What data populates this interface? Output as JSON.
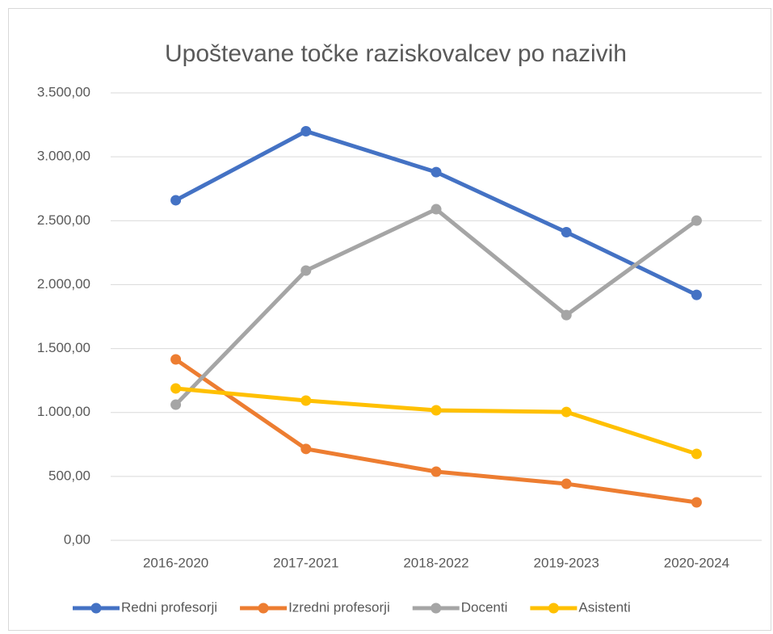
{
  "chart_data": {
    "type": "line",
    "title": "Upoštevane točke raziskovalcev po nazivih",
    "categories": [
      "2016-2020",
      "2017-2021",
      "2018-2022",
      "2019-2023",
      "2020-2024"
    ],
    "series": [
      {
        "name": "Redni profesorji",
        "color": "#4472c4",
        "values": [
          2660,
          3200,
          2880,
          2410,
          1920
        ]
      },
      {
        "name": "Izredni profesorji",
        "color": "#ed7d31",
        "values": [
          1415,
          715,
          537,
          442,
          297
        ]
      },
      {
        "name": "Docenti",
        "color": "#a5a5a5",
        "values": [
          1061,
          2110,
          2590,
          1762,
          2501
        ]
      },
      {
        "name": "Asistenti",
        "color": "#ffc000",
        "values": [
          1188,
          1093,
          1017,
          1004,
          676
        ]
      }
    ],
    "ylim": [
      0,
      3500
    ],
    "yticks": [
      {
        "value": 0,
        "label": "0,00"
      },
      {
        "value": 500,
        "label": "500,00"
      },
      {
        "value": 1000,
        "label": "1.000,00"
      },
      {
        "value": 1500,
        "label": "1.500,00"
      },
      {
        "value": 2000,
        "label": "2.000,00"
      },
      {
        "value": 2500,
        "label": "2.500,00"
      },
      {
        "value": 3000,
        "label": "3.000,00"
      },
      {
        "value": 3500,
        "label": "3.500,00"
      }
    ],
    "grid": true,
    "legend": "bottom"
  }
}
